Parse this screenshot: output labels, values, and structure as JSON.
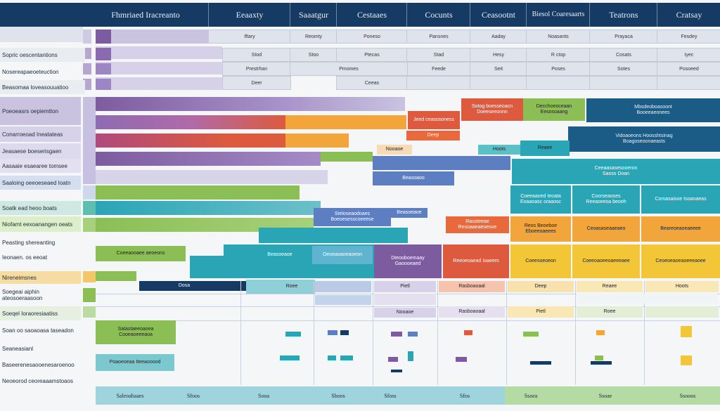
{
  "colors": {
    "navy": "#153a63",
    "purple": "#7d5b9f",
    "red": "#dd5a3e",
    "orange": "#f2a53a",
    "green": "#8bbf55",
    "teal": "#2aa5b6",
    "blue": "#5d7fc2",
    "yellow": "#f3c637"
  },
  "header": {
    "title": "Fhmriaed Iracreanto",
    "columns": [
      "Eeaaxty",
      "Saaatgur",
      "Cestaaes",
      "Cocunts",
      "Ceasootnt",
      "Biesol Coaresaarts",
      "Teatrons",
      "Cratsay"
    ]
  },
  "subheader": [
    "Iftary",
    "Reomty",
    "Poneso",
    "Pansnes",
    "Aaday",
    "Noasants",
    "Prayaca",
    "Fesdey"
  ],
  "subrow2": [
    "Stod",
    "Stoo",
    "Ptecas",
    "Stad",
    "Hesy",
    "R ctop",
    "Cosats",
    "Iyec"
  ],
  "subrow3": [
    "Feede",
    "Seit",
    "Poses",
    "Sotes",
    "Posoeed",
    "Prestrhan",
    "Pmomes"
  ],
  "subrow4": [
    "Deer",
    "Ceeas"
  ],
  "row_labels": [
    "Sopric oescentantions",
    "Nosereapaeoeteuction",
    "Beasomaa loveasouuatioo",
    "Poeoeasrs oepiemtton",
    "Conarroeoad Ineatateas",
    "Jeasaese boeserisgaen",
    "Aasaaie esaearee tomsee",
    "Saaloing oeeoeseaed Ioatn",
    "Soatk ead heoo boats",
    "Niofamt eexoanangen oeats",
    "Peasting shereanting",
    "Ieonaen. os eeoat",
    "Nireneimsnes",
    "Soegeai aiphin ateosoeraasoon",
    "Soeqel Ioraoresiaatiss",
    "Soan oo saoaoasa taseadon",
    "Seaneasianl",
    "Baseerenesaooenesaroenoo",
    "Neoeorod ceoreaaamstoaos"
  ],
  "blocks": {
    "red1": "Jeed ceasosoness",
    "orange1": "Sotog boesseoacn\nDoeeseeonnn",
    "green1": "Decchoeoceaan\nEesosoaang",
    "navy1": "Mbsdeoboasoont\nBooeeaeonees",
    "navy2": "Vidoaoeons Hoosshtsinag\nBoagoseoonaeasts",
    "teal1": "Ceeaasasesooeron\nSaoss Doan",
    "teal2": "Coeeaaoed Ieoata\nEoaaoasc oraaosc",
    "teal3": "Coorseaoses\nReeaseeoa beoeh",
    "teal4": "Comasaisoe tsoanaeas",
    "blue1": "Steloseaodoaes\nBoeoesesscoeeese",
    "blue2": "Beasoaoo",
    "orange2": "Rassteeae\nResoaaeaeoesoe",
    "orange3": "Reos Beoeboe\nEboeeoaeees",
    "orange4": "Ceoasaseaaeaeo",
    "orange5": "Beareoeaoeaeeee",
    "green2": "Coeeaooaee aeoeons",
    "teal5": "Beasoeaoe",
    "teal6": "Oeoeaoaoeaoeon",
    "purple1": "Dteooboemaay\nGaoooeaed",
    "red2": "Reeoeoaead Ioaeem",
    "orange6": "Coeesoeoeon",
    "orange7": "Coeeoaoeeoaeeeaee",
    "orange8": "Ceoeoeaoeaoeeeaoee",
    "navy3": "Dosa",
    "sub_labels": [
      "Roee",
      "Pietl",
      "Rasboaoaal",
      "Deep",
      "Nooaoe",
      "Hoots",
      "Reaee"
    ],
    "green3": "Satastaeeoaoea\nCooeaoeeeaoa",
    "teal7": "Poaoeoeaa Iteeaooood"
  },
  "footer": {
    "label": "Saleoahaaes",
    "values": [
      "Sfoos",
      "Sooa",
      "Sboos",
      "Sfoss",
      "Sfos",
      "Ssoea",
      "Ssoae",
      "Ssooos"
    ]
  }
}
